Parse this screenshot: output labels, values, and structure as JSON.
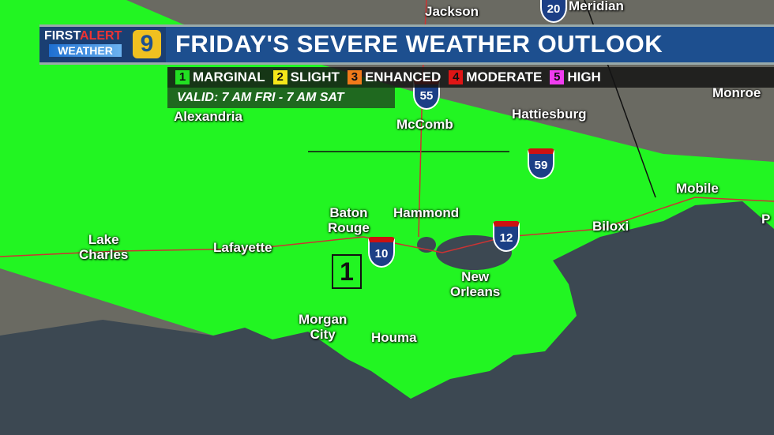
{
  "header": {
    "logo": {
      "first": "FIRST",
      "alert": "ALERT",
      "weather": "WEATHER",
      "channel": "9"
    },
    "title": "FRIDAY'S SEVERE WEATHER OUTLOOK"
  },
  "legend": [
    {
      "num": "1",
      "label": "MARGINAL",
      "color": "#22e022"
    },
    {
      "num": "2",
      "label": "SLIGHT",
      "color": "#f5e61a"
    },
    {
      "num": "3",
      "label": "ENHANCED",
      "color": "#f07a1a"
    },
    {
      "num": "4",
      "label": "MODERATE",
      "color": "#e01515"
    },
    {
      "num": "5",
      "label": "HIGH",
      "color": "#f03cf0"
    }
  ],
  "valid": "VALID: 7 AM FRI - 7 AM SAT",
  "risk_label": "1",
  "risk_area_color": "#22f522",
  "cities": {
    "jackson": "Jackson",
    "meridian": "Meridian",
    "monroe": "Monroe",
    "alexandria": "Alexandria",
    "mccomb": "McComb",
    "hattiesburg": "Hattiesburg",
    "mobile": "Mobile",
    "baton_rouge": "Baton\nRouge",
    "hammond": "Hammond",
    "biloxi": "Biloxi",
    "lake_charles": "Lake\nCharles",
    "lafayette": "Lafayette",
    "new_orleans": "New\nOrleans",
    "morgan_city": "Morgan\nCity",
    "houma": "Houma",
    "pensacola_partial": "P"
  },
  "interstates": [
    "20",
    "55",
    "59",
    "12",
    "10"
  ]
}
